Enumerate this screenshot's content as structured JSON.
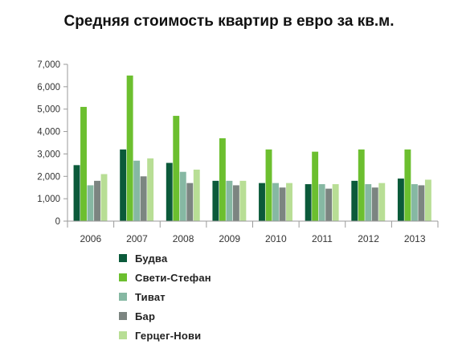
{
  "chart_data": {
    "type": "bar",
    "title": "Средняя стоимость квартир в евро за кв.м.",
    "categories": [
      "2006",
      "2007",
      "2008",
      "2009",
      "2010",
      "2011",
      "2012",
      "2013"
    ],
    "series": [
      {
        "name": "Будва",
        "color": "#0b5a3a",
        "values": [
          2500,
          3200,
          2600,
          1800,
          1700,
          1650,
          1800,
          1900
        ]
      },
      {
        "name": "Свети-Стефан",
        "color": "#6cbf2f",
        "values": [
          5100,
          6500,
          4700,
          3700,
          3200,
          3100,
          3200,
          3200
        ]
      },
      {
        "name": "Тиват",
        "color": "#86b8a3",
        "values": [
          1600,
          2700,
          2200,
          1800,
          1700,
          1650,
          1650,
          1650
        ]
      },
      {
        "name": "Бар",
        "color": "#7c8581",
        "values": [
          1800,
          2000,
          1700,
          1600,
          1500,
          1450,
          1500,
          1600
        ]
      },
      {
        "name": "Герцег-Нови",
        "color": "#b8de95",
        "values": [
          2100,
          2800,
          2300,
          1800,
          1700,
          1650,
          1700,
          1850
        ]
      }
    ],
    "y_ticks": [
      "0",
      "1,000",
      "2,000",
      "3,000",
      "4,000",
      "5,000",
      "6,000",
      "7,000"
    ],
    "ylim": [
      0,
      7000
    ],
    "legend_position": "bottom-left",
    "grid": false
  }
}
